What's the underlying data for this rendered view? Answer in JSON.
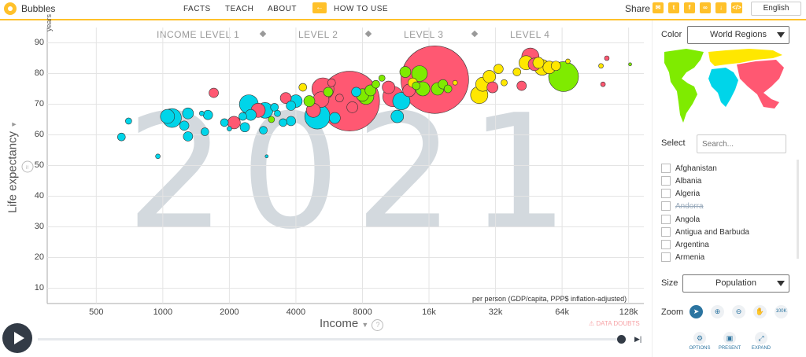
{
  "header": {
    "app_title": "Bubbles",
    "nav": [
      "FACTS",
      "TEACH",
      "ABOUT"
    ],
    "howto_icon": "arrow-left-icon",
    "howto_label": "HOW TO USE",
    "share_label": "Share",
    "share_icons": [
      "mail-icon",
      "twitter-icon",
      "facebook-icon",
      "link-icon",
      "download-icon",
      "embed-icon"
    ],
    "language": "English",
    "accent_color": "#ffc12a"
  },
  "chart_data": {
    "type": "scatter",
    "year_watermark": "2021",
    "income_levels": [
      "INCOME LEVEL 1",
      "LEVEL 2",
      "LEVEL 3",
      "LEVEL 4"
    ],
    "xlabel": "Income",
    "xunit": "per person (GDP/capita, PPP$ inflation-adjusted)",
    "ylabel": "Life expectancy",
    "yunit": "years",
    "x_ticks": [
      "500",
      "1000",
      "2000",
      "4000",
      "8000",
      "16k",
      "32k",
      "64k",
      "128k"
    ],
    "y_ticks": [
      "10",
      "20",
      "30",
      "40",
      "50",
      "60",
      "70",
      "80",
      "90"
    ],
    "xlim": [
      300,
      150000
    ],
    "ylim": [
      5,
      95
    ],
    "x_scale": "log",
    "grid": true,
    "data_doubts_label": "DATA DOUBTS",
    "region_colors": {
      "africa": "#00d5e9",
      "asia": "#ff5872",
      "americas": "#7feb00",
      "europe": "#ffe700"
    },
    "points": [
      {
        "x": 650,
        "y": 59.3,
        "r": 5,
        "c": "africa"
      },
      {
        "x": 700,
        "y": 64.5,
        "r": 4,
        "c": "africa"
      },
      {
        "x": 950,
        "y": 53,
        "r": 3,
        "c": "africa"
      },
      {
        "x": 1050,
        "y": 66,
        "r": 9,
        "c": "africa"
      },
      {
        "x": 1100,
        "y": 65.5,
        "r": 12,
        "c": "africa"
      },
      {
        "x": 1250,
        "y": 63,
        "r": 6,
        "c": "africa"
      },
      {
        "x": 1300,
        "y": 67,
        "r": 7,
        "c": "africa"
      },
      {
        "x": 1300,
        "y": 59.5,
        "r": 6,
        "c": "africa"
      },
      {
        "x": 1500,
        "y": 67,
        "r": 3,
        "c": "africa"
      },
      {
        "x": 1550,
        "y": 61,
        "r": 5,
        "c": "africa"
      },
      {
        "x": 1600,
        "y": 66.5,
        "r": 6,
        "c": "africa"
      },
      {
        "x": 1700,
        "y": 73.7,
        "r": 6,
        "c": "asia"
      },
      {
        "x": 1900,
        "y": 64,
        "r": 5,
        "c": "africa"
      },
      {
        "x": 2000,
        "y": 62,
        "r": 3,
        "c": "africa"
      },
      {
        "x": 2100,
        "y": 64,
        "r": 8,
        "c": "asia"
      },
      {
        "x": 2300,
        "y": 66,
        "r": 5,
        "c": "africa"
      },
      {
        "x": 2350,
        "y": 62.5,
        "r": 6,
        "c": "africa"
      },
      {
        "x": 2450,
        "y": 70,
        "r": 12,
        "c": "africa"
      },
      {
        "x": 2500,
        "y": 66.5,
        "r": 7,
        "c": "africa"
      },
      {
        "x": 2700,
        "y": 68,
        "r": 9,
        "c": "asia"
      },
      {
        "x": 2850,
        "y": 61.5,
        "r": 5,
        "c": "africa"
      },
      {
        "x": 2900,
        "y": 68,
        "r": 10,
        "c": "africa"
      },
      {
        "x": 2950,
        "y": 53,
        "r": 2,
        "c": "africa"
      },
      {
        "x": 3100,
        "y": 65,
        "r": 4,
        "c": "americas"
      },
      {
        "x": 3200,
        "y": 69,
        "r": 5,
        "c": "africa"
      },
      {
        "x": 3300,
        "y": 67,
        "r": 4,
        "c": "africa"
      },
      {
        "x": 3500,
        "y": 64,
        "r": 5,
        "c": "africa"
      },
      {
        "x": 3600,
        "y": 72,
        "r": 7,
        "c": "asia"
      },
      {
        "x": 3800,
        "y": 69.5,
        "r": 6,
        "c": "africa"
      },
      {
        "x": 3800,
        "y": 64.5,
        "r": 6,
        "c": "africa"
      },
      {
        "x": 4000,
        "y": 71,
        "r": 8,
        "c": "africa"
      },
      {
        "x": 4300,
        "y": 75.5,
        "r": 5,
        "c": "europe"
      },
      {
        "x": 4600,
        "y": 71,
        "r": 7,
        "c": "americas"
      },
      {
        "x": 4800,
        "y": 68,
        "r": 9,
        "c": "asia"
      },
      {
        "x": 5000,
        "y": 66,
        "r": 16,
        "c": "africa"
      },
      {
        "x": 5200,
        "y": 71.5,
        "r": 10,
        "c": "asia"
      },
      {
        "x": 5300,
        "y": 75,
        "r": 14,
        "c": "asia"
      },
      {
        "x": 5600,
        "y": 74,
        "r": 6,
        "c": "americas"
      },
      {
        "x": 5800,
        "y": 77,
        "r": 5,
        "c": "asia"
      },
      {
        "x": 6000,
        "y": 65.5,
        "r": 7,
        "c": "africa"
      },
      {
        "x": 6300,
        "y": 72,
        "r": 5,
        "c": "asia"
      },
      {
        "x": 7000,
        "y": 71,
        "r": 38,
        "c": "asia"
      },
      {
        "x": 7200,
        "y": 69,
        "r": 7,
        "c": "asia"
      },
      {
        "x": 7500,
        "y": 74,
        "r": 6,
        "c": "africa"
      },
      {
        "x": 8000,
        "y": 73,
        "r": 8,
        "c": "americas"
      },
      {
        "x": 8300,
        "y": 72.5,
        "r": 10,
        "c": "americas"
      },
      {
        "x": 8700,
        "y": 74.5,
        "r": 7,
        "c": "americas"
      },
      {
        "x": 9200,
        "y": 76.5,
        "r": 5,
        "c": "americas"
      },
      {
        "x": 9800,
        "y": 78.5,
        "r": 4,
        "c": "americas"
      },
      {
        "x": 10500,
        "y": 75.5,
        "r": 8,
        "c": "asia"
      },
      {
        "x": 11000,
        "y": 72.5,
        "r": 13,
        "c": "asia"
      },
      {
        "x": 11500,
        "y": 66,
        "r": 8,
        "c": "africa"
      },
      {
        "x": 12000,
        "y": 71,
        "r": 11,
        "c": "africa"
      },
      {
        "x": 12500,
        "y": 80.5,
        "r": 7,
        "c": "americas"
      },
      {
        "x": 13000,
        "y": 74.5,
        "r": 8,
        "c": "asia"
      },
      {
        "x": 13500,
        "y": 77,
        "r": 6,
        "c": "europe"
      },
      {
        "x": 14000,
        "y": 76,
        "r": 5,
        "c": "americas"
      },
      {
        "x": 14500,
        "y": 80,
        "r": 10,
        "c": "americas"
      },
      {
        "x": 15000,
        "y": 75,
        "r": 9,
        "c": "americas"
      },
      {
        "x": 17000,
        "y": 78,
        "r": 43,
        "c": "asia"
      },
      {
        "x": 17500,
        "y": 75,
        "r": 8,
        "c": "americas"
      },
      {
        "x": 18500,
        "y": 76.5,
        "r": 6,
        "c": "americas"
      },
      {
        "x": 19500,
        "y": 75,
        "r": 5,
        "c": "americas"
      },
      {
        "x": 21000,
        "y": 77,
        "r": 3,
        "c": "europe"
      },
      {
        "x": 27000,
        "y": 73,
        "r": 11,
        "c": "europe"
      },
      {
        "x": 28000,
        "y": 76.5,
        "r": 9,
        "c": "europe"
      },
      {
        "x": 30000,
        "y": 79,
        "r": 8,
        "c": "europe"
      },
      {
        "x": 31000,
        "y": 75.5,
        "r": 7,
        "c": "asia"
      },
      {
        "x": 33000,
        "y": 81.5,
        "r": 6,
        "c": "europe"
      },
      {
        "x": 35000,
        "y": 77,
        "r": 4,
        "c": "europe"
      },
      {
        "x": 40000,
        "y": 80.5,
        "r": 5,
        "c": "europe"
      },
      {
        "x": 42000,
        "y": 76,
        "r": 6,
        "c": "asia"
      },
      {
        "x": 44000,
        "y": 83.5,
        "r": 9,
        "c": "europe"
      },
      {
        "x": 46000,
        "y": 85.5,
        "r": 11,
        "c": "asia"
      },
      {
        "x": 48000,
        "y": 83,
        "r": 8,
        "c": "asia"
      },
      {
        "x": 50000,
        "y": 83.5,
        "r": 7,
        "c": "europe"
      },
      {
        "x": 52000,
        "y": 82,
        "r": 10,
        "c": "europe"
      },
      {
        "x": 56000,
        "y": 82,
        "r": 8,
        "c": "europe"
      },
      {
        "x": 60000,
        "y": 82.5,
        "r": 6,
        "c": "europe"
      },
      {
        "x": 65000,
        "y": 79,
        "r": 19,
        "c": "americas"
      },
      {
        "x": 68000,
        "y": 84,
        "r": 3,
        "c": "europe"
      },
      {
        "x": 96000,
        "y": 82.5,
        "r": 3,
        "c": "europe"
      },
      {
        "x": 98000,
        "y": 76.5,
        "r": 3,
        "c": "asia"
      },
      {
        "x": 102000,
        "y": 85,
        "r": 3,
        "c": "asia"
      },
      {
        "x": 130000,
        "y": 83,
        "r": 2,
        "c": "americas"
      }
    ]
  },
  "sidebar": {
    "color_label": "Color",
    "color_value": "World Regions",
    "select_label": "Select",
    "search_placeholder": "Search...",
    "countries": [
      "Afghanistan",
      "Albania",
      "Algeria",
      "Andorra",
      "Angola",
      "Antigua and Barbuda",
      "Argentina",
      "Armenia"
    ],
    "size_label": "Size",
    "size_value": "Population",
    "zoom_label": "Zoom",
    "zoom_icons": [
      "cursor-icon",
      "zoom-in-icon",
      "zoom-out-icon",
      "hand-icon",
      "zoom-100k-icon"
    ],
    "zoom_100k": "100K",
    "tools": [
      "OPTIONS",
      "PRESENT",
      "EXPAND"
    ]
  }
}
